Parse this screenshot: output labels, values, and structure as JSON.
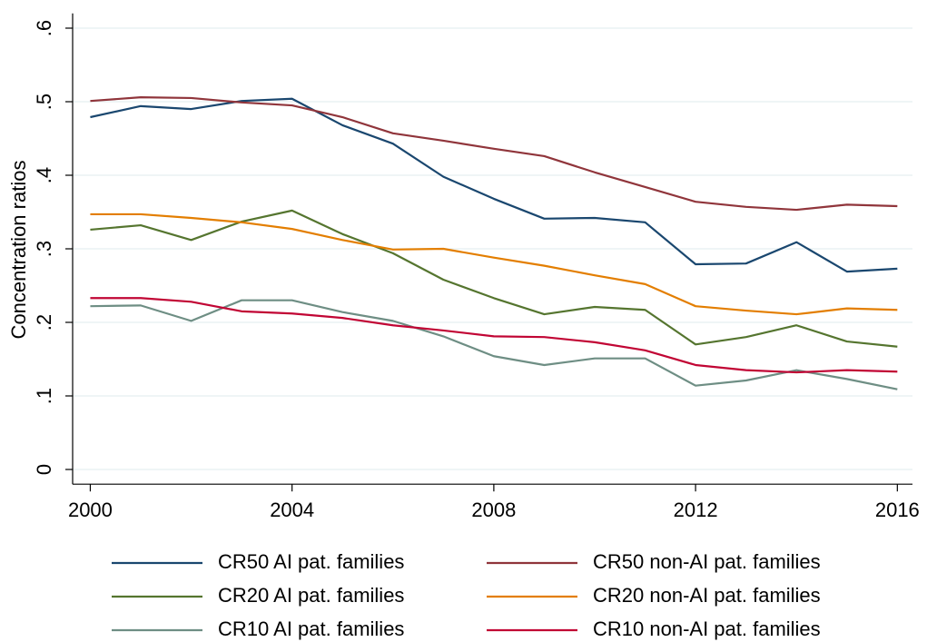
{
  "chart_data": {
    "type": "line",
    "y_label": "Concentration ratios",
    "x": [
      2000,
      2001,
      2002,
      2003,
      2004,
      2005,
      2006,
      2007,
      2008,
      2009,
      2010,
      2011,
      2012,
      2013,
      2014,
      2015,
      2016
    ],
    "xlim": [
      1999.65,
      2016.3
    ],
    "xticks": [
      2000,
      2004,
      2008,
      2012,
      2016
    ],
    "ylim": [
      -0.02,
      0.62
    ],
    "yticks": [
      0,
      {
        "value": 0.1,
        "label": ".1"
      },
      {
        "value": 0.2,
        "label": ".2"
      },
      {
        "value": 0.3,
        "label": ".3"
      },
      {
        "value": 0.4,
        "label": ".4"
      },
      {
        "value": 0.5,
        "label": ".5"
      },
      {
        "value": 0.6,
        "label": ".6"
      }
    ],
    "grid": true,
    "legend": "bottom",
    "series": [
      {
        "name": "CR50 AI pat. families",
        "color": "#1a476f",
        "values": [
          0.479,
          0.494,
          0.49,
          0.501,
          0.504,
          0.468,
          0.443,
          0.398,
          0.368,
          0.341,
          0.342,
          0.336,
          0.279,
          0.28,
          0.309,
          0.269,
          0.273
        ]
      },
      {
        "name": "CR50 non-AI pat. families",
        "color": "#90353b",
        "values": [
          0.501,
          0.506,
          0.505,
          0.499,
          0.495,
          0.479,
          0.457,
          0.447,
          0.436,
          0.426,
          0.404,
          0.384,
          0.364,
          0.357,
          0.353,
          0.36,
          0.358
        ]
      },
      {
        "name": "CR20 AI pat. families",
        "color": "#55752f",
        "values": [
          0.326,
          0.332,
          0.312,
          0.337,
          0.352,
          0.32,
          0.294,
          0.258,
          0.233,
          0.211,
          0.221,
          0.217,
          0.17,
          0.18,
          0.196,
          0.174,
          0.167
        ]
      },
      {
        "name": "CR20 non-AI pat. families",
        "color": "#e37e00",
        "values": [
          0.347,
          0.347,
          0.342,
          0.336,
          0.327,
          0.312,
          0.299,
          0.3,
          0.288,
          0.277,
          0.264,
          0.252,
          0.222,
          0.216,
          0.211,
          0.219,
          0.217
        ]
      },
      {
        "name": "CR10 AI pat. families",
        "color": "#6e8e84",
        "values": [
          0.222,
          0.223,
          0.202,
          0.23,
          0.23,
          0.214,
          0.202,
          0.181,
          0.154,
          0.142,
          0.151,
          0.151,
          0.114,
          0.121,
          0.135,
          0.123,
          0.109
        ]
      },
      {
        "name": "CR10 non-AI pat. families",
        "color": "#c10534",
        "values": [
          0.233,
          0.233,
          0.228,
          0.215,
          0.212,
          0.206,
          0.196,
          0.189,
          0.181,
          0.18,
          0.173,
          0.162,
          0.142,
          0.135,
          0.132,
          0.135,
          0.133
        ]
      }
    ]
  }
}
